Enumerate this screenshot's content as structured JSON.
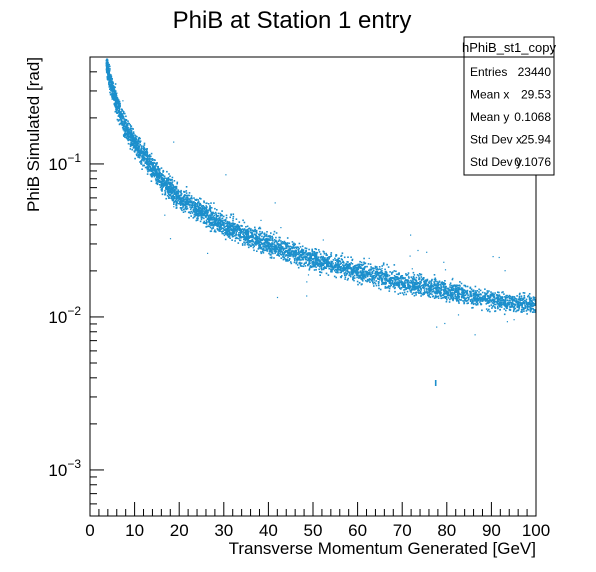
{
  "chart_data": {
    "type": "scatter",
    "title": "PhiB at Station 1 entry",
    "xlabel": "Transverse Momentum Generated [GeV]",
    "ylabel": "PhiB Simulated [rad]",
    "xlim": [
      0,
      100
    ],
    "ylim": [
      0.0005,
      0.5
    ],
    "yscale": "log",
    "x_ticks": [
      0,
      10,
      20,
      30,
      40,
      50,
      60,
      70,
      80,
      90,
      100
    ],
    "y_ticks": [
      {
        "base": "10",
        "exp": "−3",
        "value": 0.001
      },
      {
        "base": "10",
        "exp": "−2",
        "value": 0.01
      },
      {
        "base": "10",
        "exp": "−1",
        "value": 0.1
      }
    ],
    "marker_color": "#1c8fcc",
    "band": {
      "description_points_x": [
        3.5,
        4,
        5,
        6,
        8,
        10,
        15,
        20,
        30,
        40,
        50,
        60,
        70,
        80,
        90,
        100
      ],
      "description_points_y": [
        0.5,
        0.38,
        0.3,
        0.24,
        0.17,
        0.135,
        0.085,
        0.06,
        0.04,
        0.03,
        0.024,
        0.02,
        0.017,
        0.015,
        0.013,
        0.012
      ]
    },
    "outliers": [
      {
        "x": 77.5,
        "y": 0.0037
      }
    ],
    "stats": {
      "name": "hPhiB_st1_copy",
      "rows": [
        {
          "label": "Entries",
          "value": "23440"
        },
        {
          "label": "Mean x",
          "value": "29.53"
        },
        {
          "label": "Mean y",
          "value": "0.1068"
        },
        {
          "label": "Std Dev x",
          "value": "25.94"
        },
        {
          "label": "Std Dev y",
          "value": "0.1076"
        }
      ]
    },
    "grid": false
  }
}
